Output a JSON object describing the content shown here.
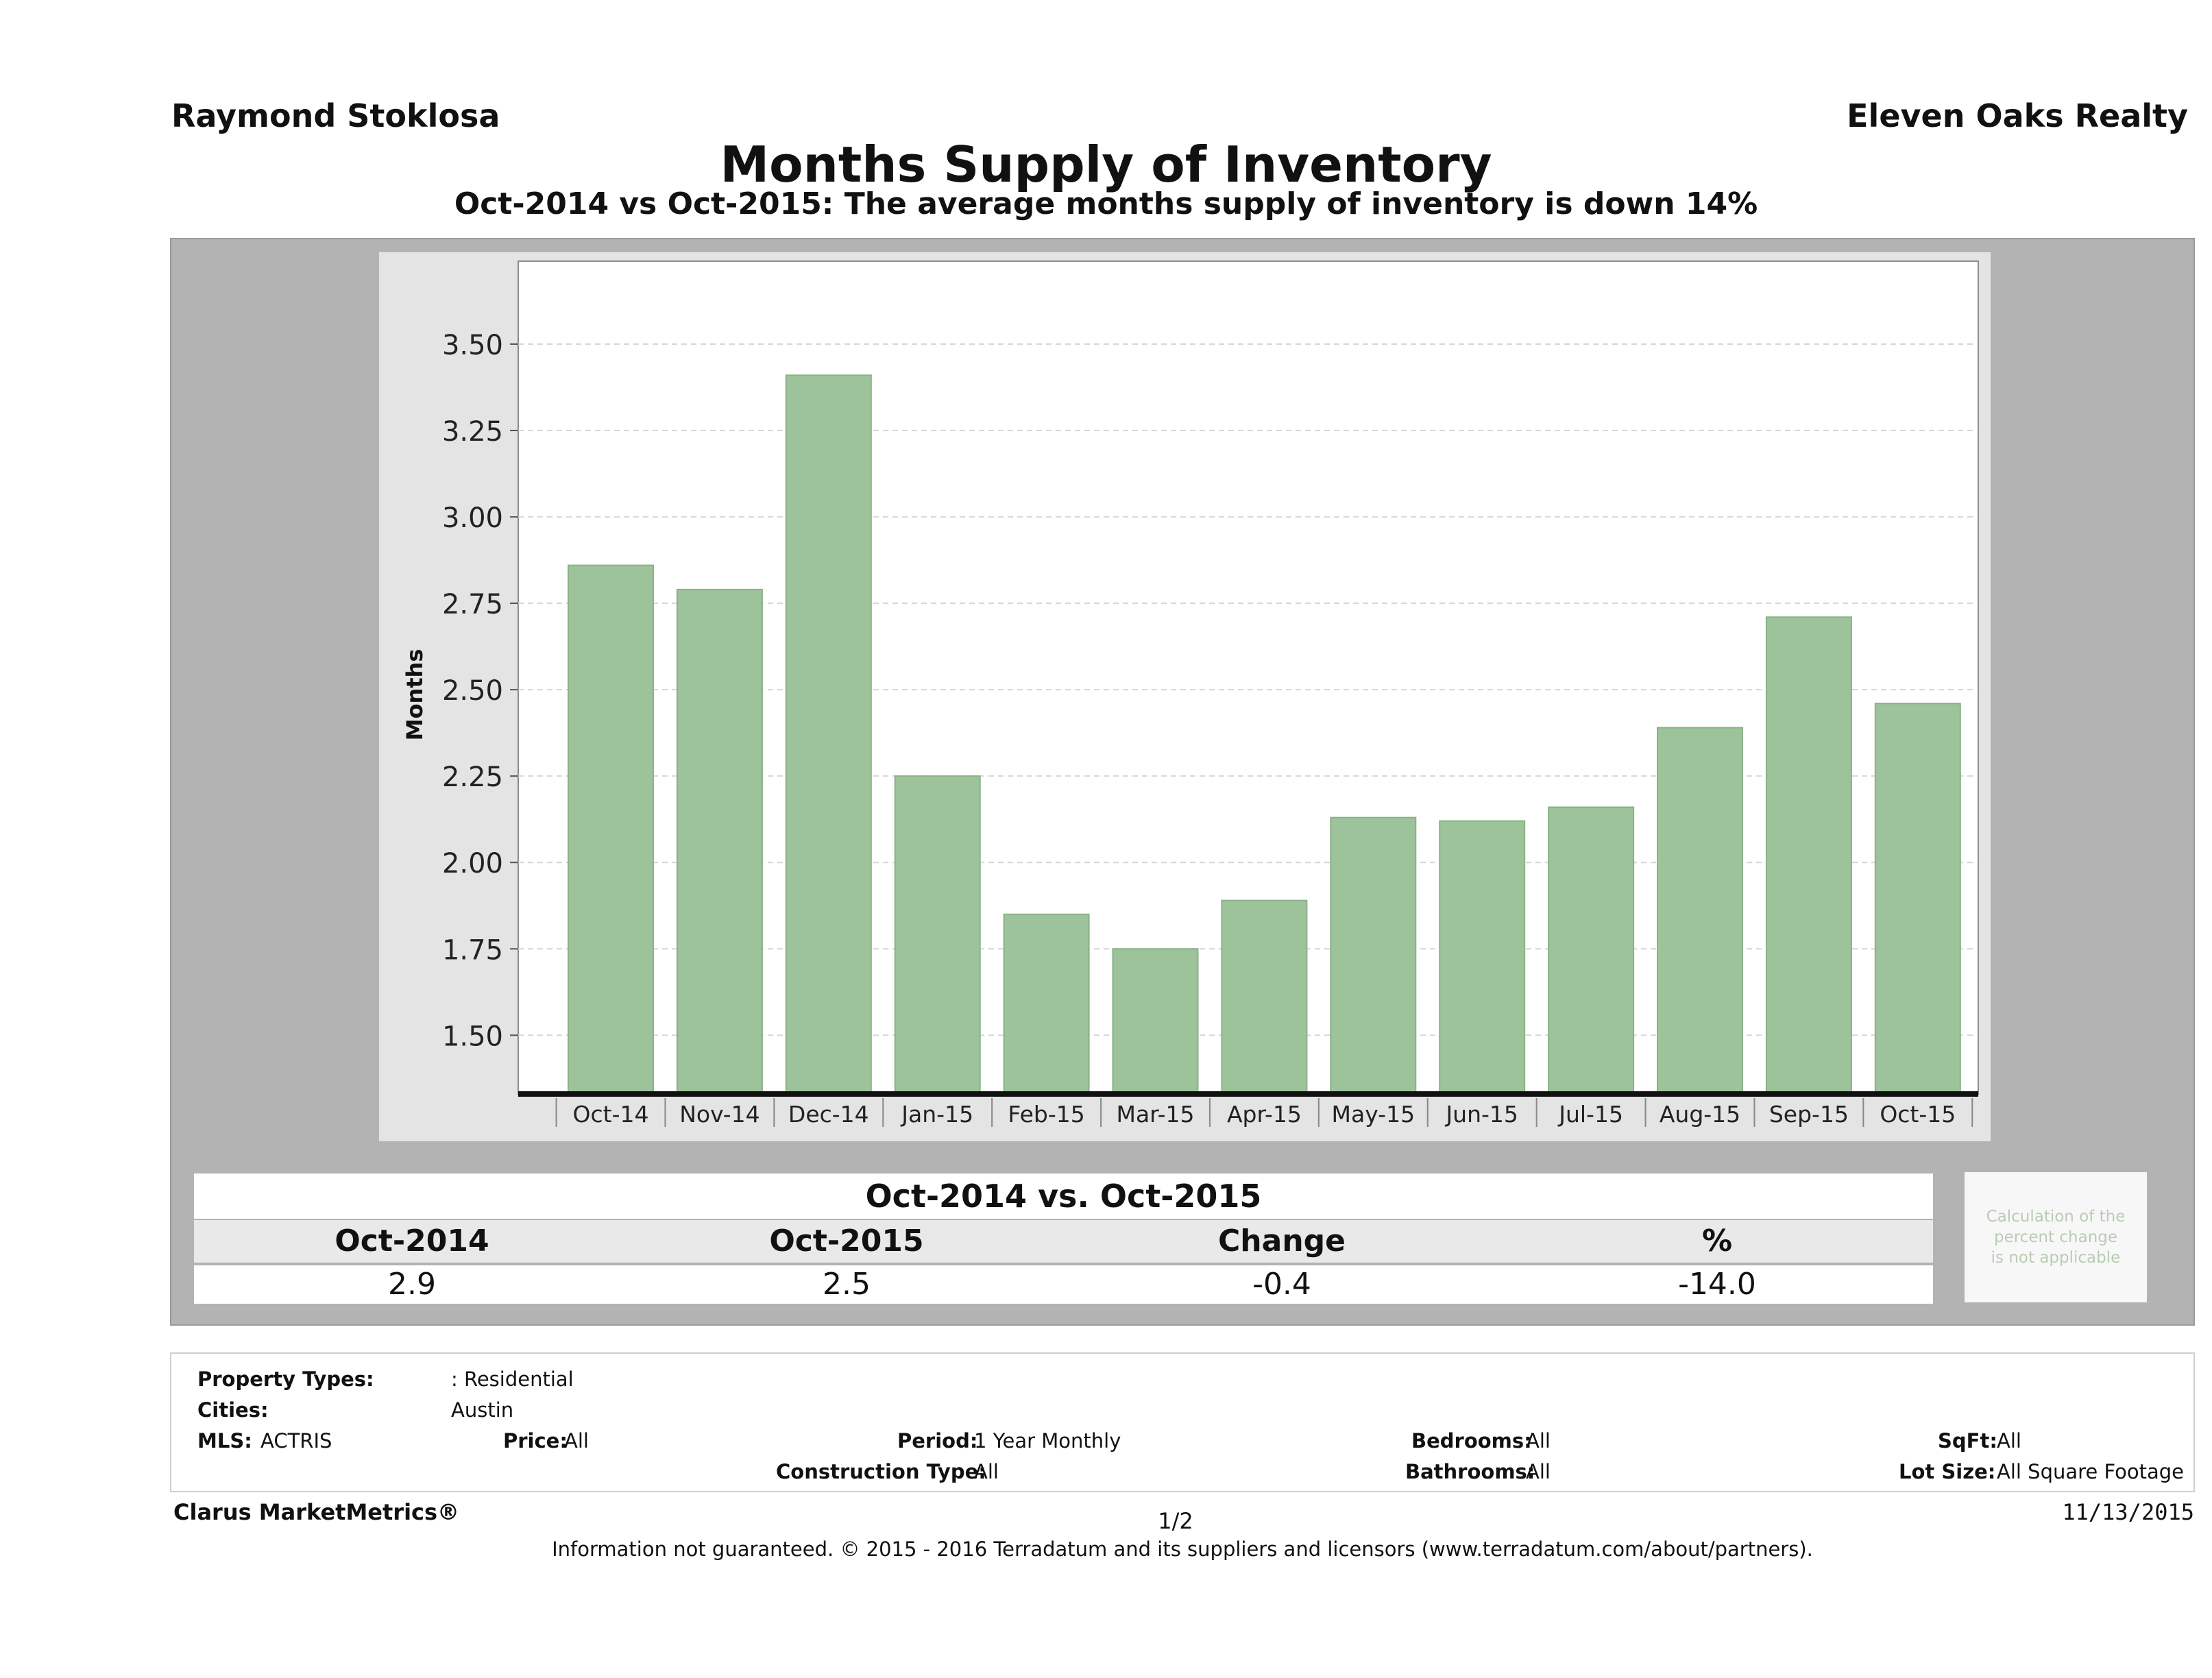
{
  "header": {
    "agent": "Raymond Stoklosa",
    "company": "Eleven Oaks Realty",
    "title": "Months Supply of Inventory",
    "subtitle": "Oct-2014 vs Oct-2015: The average months supply of inventory is down 14%"
  },
  "chart_data": {
    "type": "bar",
    "ylabel": "Months",
    "xlabel": "",
    "categories": [
      "Oct-14",
      "Nov-14",
      "Dec-14",
      "Jan-15",
      "Feb-15",
      "Mar-15",
      "Apr-15",
      "May-15",
      "Jun-15",
      "Jul-15",
      "Aug-15",
      "Sep-15",
      "Oct-15"
    ],
    "values": [
      2.86,
      2.79,
      3.41,
      2.25,
      1.85,
      1.75,
      1.89,
      2.13,
      2.12,
      2.16,
      2.39,
      2.71,
      2.46
    ],
    "ylim": [
      1.33,
      3.74
    ],
    "yticks": [
      "1.50",
      "1.75",
      "2.00",
      "2.25",
      "2.50",
      "2.75",
      "3.00",
      "3.25",
      "3.50"
    ],
    "grid": true,
    "colors": {
      "bar": "#9dc39a",
      "bar_edge": "#8ab187",
      "plot_bg": "#ffffff",
      "frame_bg": "#e4e4e4"
    }
  },
  "comparison": {
    "header": "Oct-2014 vs. Oct-2015",
    "labels": [
      "Oct-2014",
      "Oct-2015",
      "Change",
      "%"
    ],
    "values": [
      "2.9",
      "2.5",
      "-0.4",
      "-14.0"
    ],
    "note": [
      "Calculation of the",
      "percent change",
      "is not applicable"
    ]
  },
  "filters": {
    "property_types_label": "Property Types:",
    "property_types_value": ": Residential",
    "cities_label": "Cities:",
    "cities_value": "Austin",
    "mls_label": "MLS:",
    "mls_value": "ACTRIS",
    "price_label": "Price:",
    "price_value": "All",
    "period_label": "Period:",
    "period_value": "1 Year Monthly",
    "construction_label": "Construction Type:",
    "construction_value": "All",
    "bedrooms_label": "Bedrooms:",
    "bedrooms_value": "All",
    "bathrooms_label": "Bathrooms:",
    "bathrooms_value": "All",
    "sqft_label": "SqFt:",
    "sqft_value": "All",
    "lotsize_label": "Lot Size:",
    "lotsize_value": "All Square Footage"
  },
  "footer": {
    "brand": "Clarus MarketMetrics®",
    "page": "1/2",
    "date": "11/13/2015",
    "disclaimer": "Information not guaranteed. © 2015 - 2016 Terradatum and its suppliers and licensors (www.terradatum.com/about/partners)."
  }
}
